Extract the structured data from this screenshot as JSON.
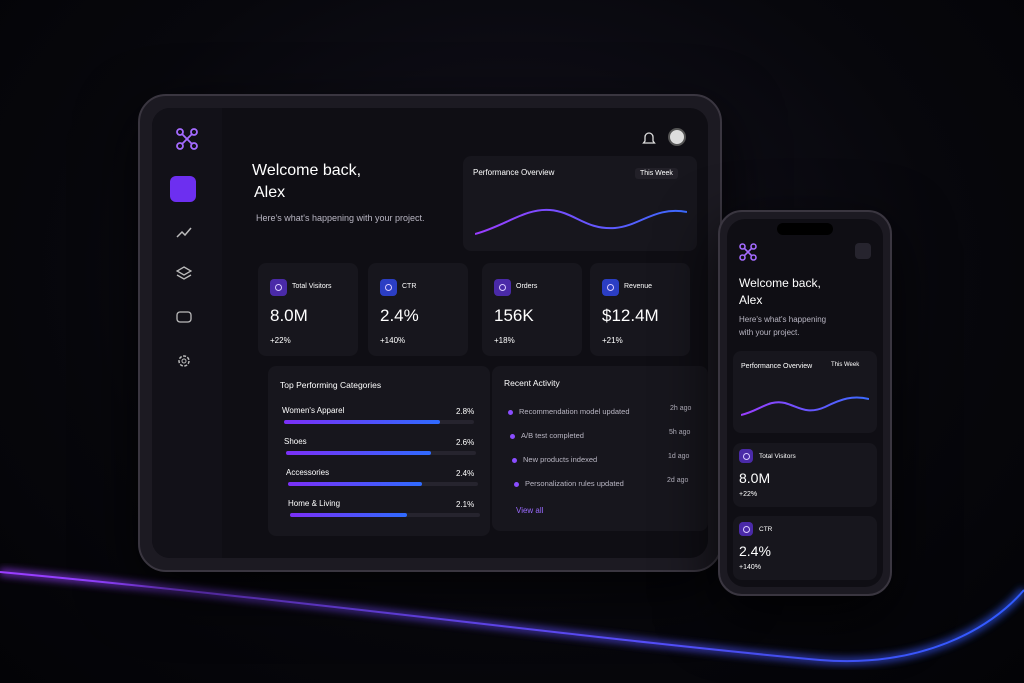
{
  "tablet": {
    "greeting": "Welcome back,",
    "name": "Alex",
    "subtitle": "Here's what's happening with your project.",
    "performance": {
      "title": "Performance Overview",
      "period": "This Week"
    },
    "stats": [
      {
        "label": "Total Visitors",
        "value": "8.0M",
        "change": "+22%"
      },
      {
        "label": "CTR",
        "value": "2.4%",
        "change": "+140%"
      },
      {
        "label": "Orders",
        "value": "156K",
        "change": "+18%"
      },
      {
        "label": "Revenue",
        "value": "$12.4M",
        "change": "+21%"
      }
    ],
    "categories": {
      "title": "Top Performing Categories",
      "items": [
        {
          "name": "Women's Apparel",
          "value": "2.8%"
        },
        {
          "name": "Shoes",
          "value": "2.6%"
        },
        {
          "name": "Accessories",
          "value": "2.4%"
        },
        {
          "name": "Home & Living",
          "value": "2.1%"
        }
      ]
    },
    "activity": {
      "title": "Recent Activity",
      "items": [
        {
          "text": "Recommendation model updated",
          "time": "2h ago"
        },
        {
          "text": "A/B test completed",
          "time": "5h ago"
        },
        {
          "text": "New products indexed",
          "time": "1d ago"
        },
        {
          "text": "Personalization rules updated",
          "time": "2d ago"
        }
      ],
      "link": "View all"
    }
  },
  "phone": {
    "greeting": "Welcome back,",
    "name": "Alex",
    "subtitle": [
      "Here's what's happening",
      "with your project."
    ],
    "performance": {
      "title": "Performance Overview",
      "period": "This Week"
    },
    "stats": [
      {
        "label": "Total Visitors",
        "value": "8.0M",
        "change": "+22%"
      },
      {
        "label": "CTR",
        "value": "2.4%",
        "change": "+140%"
      }
    ]
  }
}
